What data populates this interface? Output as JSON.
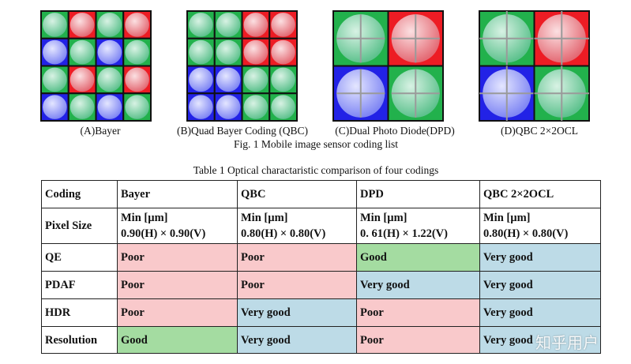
{
  "figure": {
    "panels": [
      {
        "caption": "(A)Bayer"
      },
      {
        "caption": "(B)Quad Bayer Coding (QBC)"
      },
      {
        "caption": "(C)Dual Photo Diode(DPD)"
      },
      {
        "caption": "(D)QBC 2×2OCL"
      }
    ],
    "caption": "Fig. 1 Mobile image sensor coding list"
  },
  "table": {
    "title": "Table 1 Optical charactaristic comparison of four codings",
    "rating_colors": {
      "Poor": "#f9c9cb",
      "Good": "#a4dca1",
      "Very good": "#bddbe7"
    },
    "rows": [
      [
        "Coding",
        "Bayer",
        "QBC",
        "DPD",
        "QBC 2×2OCL"
      ],
      [
        "Pixel Size",
        [
          "Min [µm]",
          "0.90(H) × 0.90(V)"
        ],
        [
          "Min [µm]",
          "0.80(H) × 0.80(V)"
        ],
        [
          "Min [µm]",
          "0. 61(H) × 1.22(V)"
        ],
        [
          "Min [µm]",
          "0.80(H) × 0.80(V)"
        ]
      ],
      [
        "QE",
        "Poor",
        "Poor",
        "Good",
        "Very good"
      ],
      [
        "PDAF",
        "Poor",
        "Poor",
        "Very good",
        "Very good"
      ],
      [
        "HDR",
        "Poor",
        "Very good",
        "Poor",
        "Very good"
      ],
      [
        "Resolution",
        "Good",
        "Very good",
        "Poor",
        "Very good"
      ]
    ]
  },
  "watermark": "知乎用户"
}
